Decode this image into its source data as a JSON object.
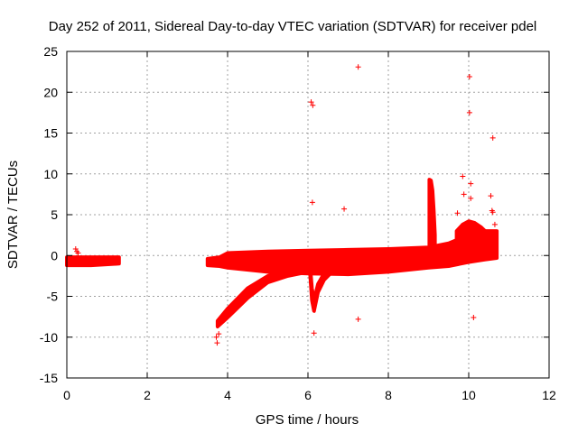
{
  "chart_data": {
    "type": "scatter",
    "title": "Day 252 of 2011, Sidereal Day-to-day VTEC variation (SDTVAR) for receiver pdel",
    "xlabel": "GPS time / hours",
    "ylabel": "SDTVAR / TECUs",
    "xlim": [
      0,
      12
    ],
    "ylim": [
      -15,
      25
    ],
    "xticks": [
      0,
      2,
      4,
      6,
      8,
      10,
      12
    ],
    "yticks": [
      -15,
      -10,
      -5,
      0,
      5,
      10,
      15,
      20,
      25
    ],
    "grid": true,
    "marker": "+",
    "color": "#ff0000",
    "dense_bands": [
      {
        "name": "early-segment",
        "x": [
          0.0,
          0.6,
          1.3
        ],
        "upper": [
          -0.2,
          -0.2,
          -0.2
        ],
        "lower": [
          -1.2,
          -1.2,
          -1.0
        ]
      },
      {
        "name": "main-band",
        "x": [
          3.5,
          3.8,
          4.0,
          5.0,
          6.0,
          7.0,
          8.0,
          9.0,
          9.5,
          10.0,
          10.4,
          10.7
        ],
        "upper": [
          -0.4,
          -0.2,
          0.3,
          0.5,
          0.6,
          0.7,
          0.8,
          1.0,
          1.5,
          2.5,
          3.0,
          3.0
        ],
        "lower": [
          -1.2,
          -1.3,
          -1.5,
          -2.0,
          -2.2,
          -2.3,
          -2.0,
          -1.5,
          -1.3,
          -0.8,
          -0.5,
          -0.3
        ]
      },
      {
        "name": "negative-branch",
        "x": [
          3.75,
          4.0,
          4.5,
          5.0,
          5.5,
          6.0,
          6.5,
          7.0
        ],
        "upper": [
          -8.0,
          -6.5,
          -4.0,
          -2.5,
          -1.8,
          -1.3,
          -1.0,
          -0.8
        ],
        "lower": [
          -8.7,
          -7.6,
          -5.2,
          -3.3,
          -2.5,
          -2.0,
          -1.6,
          -1.3
        ]
      },
      {
        "name": "spike-6.1",
        "x": [
          6.05,
          6.1,
          6.15,
          6.25,
          6.4,
          6.6
        ],
        "upper": [
          -1.0,
          -4.0,
          -5.5,
          -3.5,
          -2.2,
          -1.5
        ],
        "lower": [
          -2.0,
          -5.5,
          -6.8,
          -4.5,
          -3.0,
          -2.0
        ]
      },
      {
        "name": "peak-9.1",
        "x": [
          9.02,
          9.06,
          9.1,
          9.13,
          9.16
        ],
        "upper": [
          9.3,
          9.2,
          8.0,
          5.5,
          2.5
        ],
        "lower": [
          1.0,
          1.0,
          1.0,
          1.0,
          0.8
        ]
      },
      {
        "name": "arch-10",
        "x": [
          9.7,
          9.85,
          10.0,
          10.15,
          10.3,
          10.45,
          10.6
        ],
        "upper": [
          3.0,
          3.8,
          4.2,
          4.0,
          3.5,
          2.8,
          1.5
        ],
        "lower": [
          1.5,
          2.0,
          2.5,
          2.5,
          2.0,
          1.2,
          0.5
        ]
      }
    ],
    "points": [
      {
        "x": 0.22,
        "y": 0.8
      },
      {
        "x": 0.25,
        "y": 0.5
      },
      {
        "x": 0.28,
        "y": 0.3
      },
      {
        "x": 3.72,
        "y": -10.0
      },
      {
        "x": 3.74,
        "y": -10.7
      },
      {
        "x": 3.78,
        "y": -9.6
      },
      {
        "x": 6.08,
        "y": 18.8
      },
      {
        "x": 6.12,
        "y": 18.4
      },
      {
        "x": 6.11,
        "y": 6.5
      },
      {
        "x": 6.15,
        "y": -9.5
      },
      {
        "x": 6.9,
        "y": 5.7
      },
      {
        "x": 7.25,
        "y": 23.1
      },
      {
        "x": 7.25,
        "y": -7.8
      },
      {
        "x": 9.72,
        "y": 5.2
      },
      {
        "x": 9.85,
        "y": 9.7
      },
      {
        "x": 9.88,
        "y": 7.5
      },
      {
        "x": 10.02,
        "y": 21.9
      },
      {
        "x": 10.02,
        "y": 17.5
      },
      {
        "x": 10.05,
        "y": 8.8
      },
      {
        "x": 10.05,
        "y": 7.0
      },
      {
        "x": 10.12,
        "y": -7.6
      },
      {
        "x": 10.55,
        "y": 7.3
      },
      {
        "x": 10.6,
        "y": 14.4
      },
      {
        "x": 10.58,
        "y": 5.5
      },
      {
        "x": 10.6,
        "y": 5.3
      },
      {
        "x": 10.65,
        "y": 3.8
      }
    ]
  }
}
